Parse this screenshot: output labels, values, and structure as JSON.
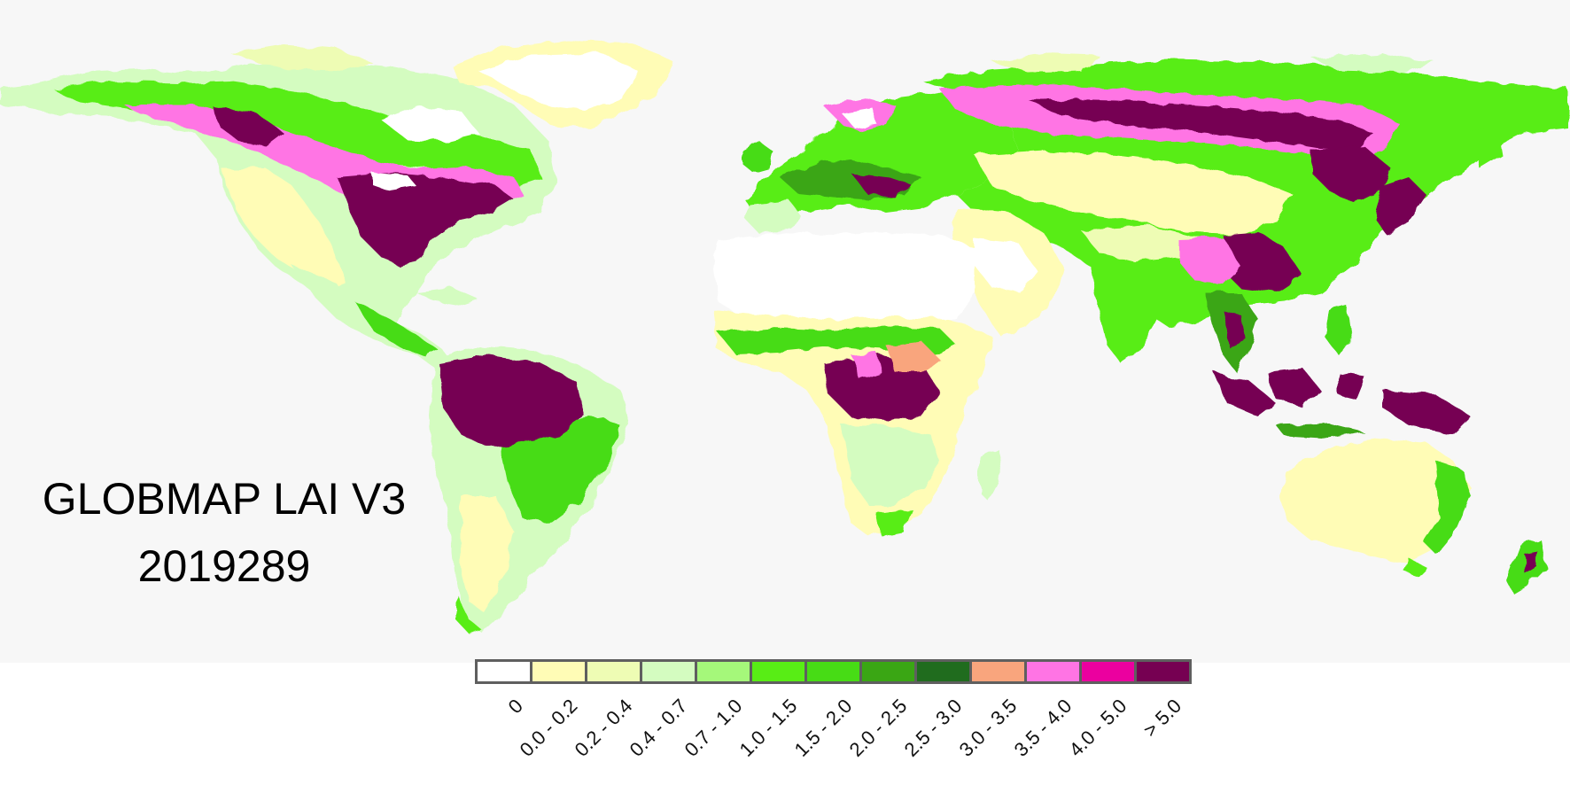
{
  "title": {
    "product": "GLOBMAP LAI V3",
    "date_code": "2019289"
  },
  "legend": {
    "classes": [
      {
        "label": "0",
        "color": "#ffffff"
      },
      {
        "label": "0.0 - 0.2",
        "color": "#fffcb6"
      },
      {
        "label": "0.2 - 0.4",
        "color": "#eefcb4"
      },
      {
        "label": "0.4 - 0.7",
        "color": "#d4fcc0"
      },
      {
        "label": "0.7 - 1.0",
        "color": "#a5f87a"
      },
      {
        "label": "1.0 - 1.5",
        "color": "#58ed15"
      },
      {
        "label": "1.5 - 2.0",
        "color": "#47dc15"
      },
      {
        "label": "2.0 - 2.5",
        "color": "#3aa614"
      },
      {
        "label": "2.5 - 3.0",
        "color": "#206c1e"
      },
      {
        "label": "3.0 - 3.5",
        "color": "#f9a57d"
      },
      {
        "label": "3.5 - 4.0",
        "color": "#ff74e4"
      },
      {
        "label": "4.0 - 5.0",
        "color": "#eb009f"
      },
      {
        "label": "> 5.0",
        "color": "#760052"
      }
    ]
  },
  "colors": {
    "ocean": "#f7f7f7",
    "ice": "#ffffff"
  }
}
